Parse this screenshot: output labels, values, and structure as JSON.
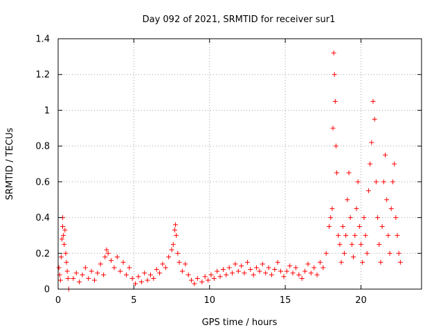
{
  "chart_data": {
    "type": "scatter",
    "title": "Day 092 of 2021, SRMTID for receiver sur1",
    "xlabel": "GPS time / hours",
    "ylabel": "SRMTID / TECUs",
    "xlim": [
      0,
      24
    ],
    "ylim": [
      0,
      1.4
    ],
    "xticks": [
      0,
      5,
      10,
      15,
      20
    ],
    "yticks": [
      0,
      0.2,
      0.4,
      0.6,
      0.8,
      1,
      1.2,
      1.4
    ],
    "xtick_labels": [
      "0",
      "5",
      "10",
      "15",
      "20"
    ],
    "ytick_labels": [
      "0",
      "0.2",
      "0.4",
      "0.6",
      "0.8",
      "1",
      "1.2",
      "1.4"
    ],
    "grid": true,
    "marker": "+",
    "color": "#ff0000",
    "series": [
      {
        "name": "sur1",
        "points": [
          [
            0.05,
            0.12
          ],
          [
            0.1,
            0.08
          ],
          [
            0.15,
            0.05
          ],
          [
            0.2,
            0.18
          ],
          [
            0.25,
            0.28
          ],
          [
            0.3,
            0.35
          ],
          [
            0.3,
            0.4
          ],
          [
            0.35,
            0.3
          ],
          [
            0.4,
            0.25
          ],
          [
            0.45,
            0.33
          ],
          [
            0.5,
            0.2
          ],
          [
            0.55,
            0.15
          ],
          [
            0.6,
            0.1
          ],
          [
            0.65,
            0.06
          ],
          [
            0.7,
            0.0
          ],
          [
            1.0,
            0.06
          ],
          [
            1.2,
            0.09
          ],
          [
            1.4,
            0.04
          ],
          [
            1.6,
            0.08
          ],
          [
            1.8,
            0.12
          ],
          [
            2.0,
            0.06
          ],
          [
            2.2,
            0.1
          ],
          [
            2.4,
            0.05
          ],
          [
            2.6,
            0.09
          ],
          [
            2.8,
            0.14
          ],
          [
            3.0,
            0.08
          ],
          [
            3.1,
            0.18
          ],
          [
            3.2,
            0.22
          ],
          [
            3.3,
            0.2
          ],
          [
            3.5,
            0.16
          ],
          [
            3.7,
            0.12
          ],
          [
            3.9,
            0.18
          ],
          [
            4.1,
            0.1
          ],
          [
            4.3,
            0.15
          ],
          [
            4.5,
            0.08
          ],
          [
            4.7,
            0.12
          ],
          [
            4.9,
            0.06
          ],
          [
            5.1,
            0.03
          ],
          [
            5.3,
            0.07
          ],
          [
            5.5,
            0.04
          ],
          [
            5.7,
            0.09
          ],
          [
            5.9,
            0.05
          ],
          [
            6.1,
            0.08
          ],
          [
            6.3,
            0.06
          ],
          [
            6.5,
            0.11
          ],
          [
            6.7,
            0.09
          ],
          [
            6.9,
            0.14
          ],
          [
            7.1,
            0.12
          ],
          [
            7.3,
            0.18
          ],
          [
            7.5,
            0.22
          ],
          [
            7.6,
            0.25
          ],
          [
            7.7,
            0.33
          ],
          [
            7.75,
            0.36
          ],
          [
            7.8,
            0.3
          ],
          [
            7.9,
            0.2
          ],
          [
            8.0,
            0.15
          ],
          [
            8.2,
            0.1
          ],
          [
            8.4,
            0.14
          ],
          [
            8.6,
            0.08
          ],
          [
            8.8,
            0.05
          ],
          [
            9.0,
            0.03
          ],
          [
            9.2,
            0.06
          ],
          [
            9.5,
            0.04
          ],
          [
            9.7,
            0.07
          ],
          [
            9.9,
            0.05
          ],
          [
            10.1,
            0.08
          ],
          [
            10.3,
            0.06
          ],
          [
            10.5,
            0.1
          ],
          [
            10.7,
            0.07
          ],
          [
            10.9,
            0.11
          ],
          [
            11.1,
            0.08
          ],
          [
            11.3,
            0.12
          ],
          [
            11.5,
            0.09
          ],
          [
            11.7,
            0.14
          ],
          [
            11.9,
            0.1
          ],
          [
            12.1,
            0.13
          ],
          [
            12.3,
            0.09
          ],
          [
            12.5,
            0.15
          ],
          [
            12.7,
            0.11
          ],
          [
            12.9,
            0.08
          ],
          [
            13.1,
            0.12
          ],
          [
            13.3,
            0.1
          ],
          [
            13.5,
            0.14
          ],
          [
            13.7,
            0.09
          ],
          [
            13.9,
            0.12
          ],
          [
            14.1,
            0.08
          ],
          [
            14.3,
            0.11
          ],
          [
            14.5,
            0.15
          ],
          [
            14.7,
            0.1
          ],
          [
            14.9,
            0.07
          ],
          [
            15.1,
            0.1
          ],
          [
            15.3,
            0.13
          ],
          [
            15.5,
            0.09
          ],
          [
            15.7,
            0.12
          ],
          [
            15.9,
            0.08
          ],
          [
            16.1,
            0.06
          ],
          [
            16.3,
            0.1
          ],
          [
            16.5,
            0.14
          ],
          [
            16.7,
            0.09
          ],
          [
            16.9,
            0.12
          ],
          [
            17.1,
            0.08
          ],
          [
            17.3,
            0.15
          ],
          [
            17.5,
            0.12
          ],
          [
            17.7,
            0.2
          ],
          [
            17.9,
            0.35
          ],
          [
            18.0,
            0.4
          ],
          [
            18.1,
            0.45
          ],
          [
            18.15,
            0.9
          ],
          [
            18.2,
            1.32
          ],
          [
            18.25,
            1.2
          ],
          [
            18.3,
            1.05
          ],
          [
            18.35,
            0.8
          ],
          [
            18.4,
            0.65
          ],
          [
            18.5,
            0.3
          ],
          [
            18.6,
            0.25
          ],
          [
            18.7,
            0.15
          ],
          [
            18.8,
            0.35
          ],
          [
            18.9,
            0.2
          ],
          [
            19.0,
            0.3
          ],
          [
            19.1,
            0.5
          ],
          [
            19.2,
            0.65
          ],
          [
            19.3,
            0.4
          ],
          [
            19.4,
            0.25
          ],
          [
            19.5,
            0.18
          ],
          [
            19.6,
            0.3
          ],
          [
            19.7,
            0.45
          ],
          [
            19.8,
            0.6
          ],
          [
            19.9,
            0.35
          ],
          [
            20.0,
            0.25
          ],
          [
            20.1,
            0.15
          ],
          [
            20.2,
            0.4
          ],
          [
            20.3,
            0.3
          ],
          [
            20.4,
            0.2
          ],
          [
            20.5,
            0.55
          ],
          [
            20.6,
            0.7
          ],
          [
            20.7,
            0.82
          ],
          [
            20.8,
            1.05
          ],
          [
            20.9,
            0.95
          ],
          [
            21.0,
            0.6
          ],
          [
            21.1,
            0.4
          ],
          [
            21.2,
            0.25
          ],
          [
            21.3,
            0.15
          ],
          [
            21.4,
            0.35
          ],
          [
            21.5,
            0.6
          ],
          [
            21.6,
            0.75
          ],
          [
            21.7,
            0.5
          ],
          [
            21.8,
            0.3
          ],
          [
            21.9,
            0.2
          ],
          [
            22.0,
            0.45
          ],
          [
            22.1,
            0.6
          ],
          [
            22.2,
            0.7
          ],
          [
            22.3,
            0.4
          ],
          [
            22.4,
            0.3
          ],
          [
            22.5,
            0.2
          ],
          [
            22.6,
            0.15
          ]
        ]
      }
    ]
  }
}
